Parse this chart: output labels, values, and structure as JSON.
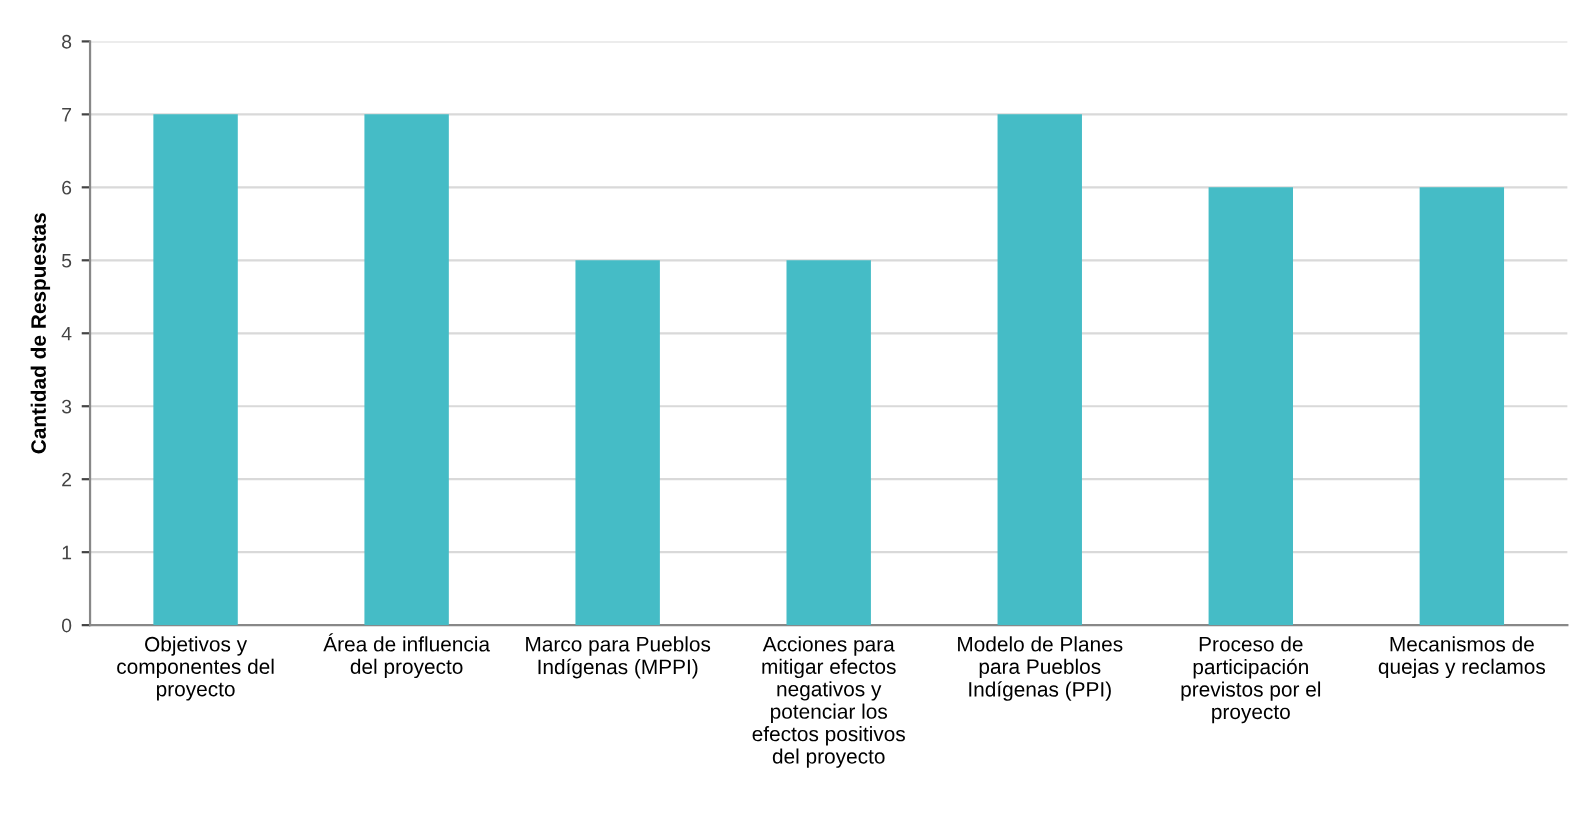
{
  "chart_data": {
    "type": "bar",
    "categories": [
      "Objetivos y componentes del proyecto",
      "Área de influencia del proyecto",
      "Marco para Pueblos Indígenas (MPPI)",
      "Acciones para mitigar efectos negativos y potenciar los efectos positivos del proyecto",
      "Modelo de Planes para Pueblos Indígenas (PPI)",
      "Proceso de participación previstos por el proyecto",
      "Mecanismos de quejas y reclamos"
    ],
    "values": [
      7,
      7,
      5,
      5,
      7,
      6,
      6
    ],
    "color": "#45bcc6",
    "ylabel": "Cantidad de Respuestas",
    "ylim": [
      0,
      8
    ],
    "yticks": [
      0,
      1,
      2,
      3,
      4,
      5,
      6,
      7,
      8
    ],
    "grid": "y",
    "legend": false
  }
}
